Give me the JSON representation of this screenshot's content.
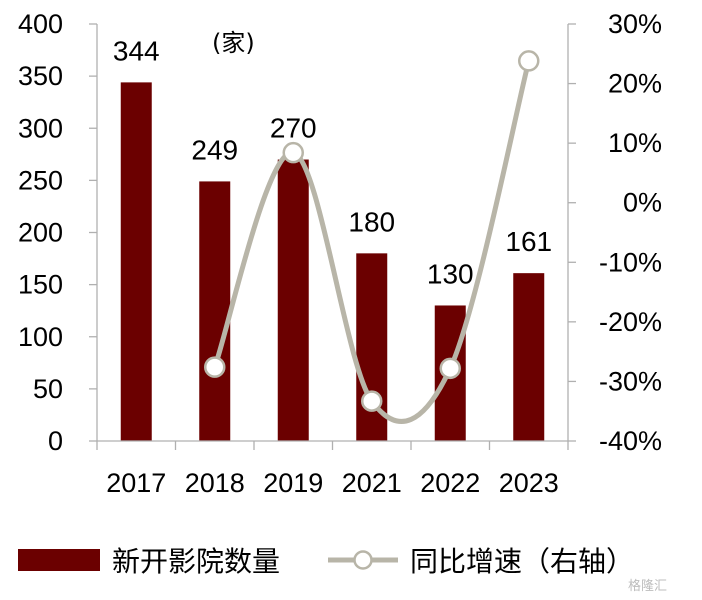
{
  "chart_data": {
    "type": "bar",
    "categories": [
      "2017",
      "2018",
      "2019",
      "2021",
      "2022",
      "2023"
    ],
    "unit_label": "(家)",
    "series": [
      {
        "name": "新开影院数量",
        "type": "bar",
        "axis": "left",
        "values": [
          344,
          249,
          270,
          180,
          130,
          161
        ],
        "color": "#6b0000"
      },
      {
        "name": "同比增速（右轴）",
        "type": "line",
        "axis": "right",
        "values": [
          null,
          -27.6,
          8.4,
          -33.3,
          -27.8,
          23.8
        ],
        "color": "#b8b5a8",
        "marker_fill": "#ffffff"
      }
    ],
    "y_left": {
      "min": 0,
      "max": 400,
      "ticks": [
        0,
        50,
        100,
        150,
        200,
        250,
        300,
        350,
        400
      ]
    },
    "y_right": {
      "min": -40,
      "max": 30,
      "ticks": [
        "-40%",
        "-30%",
        "-20%",
        "-10%",
        "0%",
        "10%",
        "20%",
        "30%"
      ]
    },
    "grid": false,
    "legend_position": "bottom"
  },
  "watermark": "格隆汇"
}
